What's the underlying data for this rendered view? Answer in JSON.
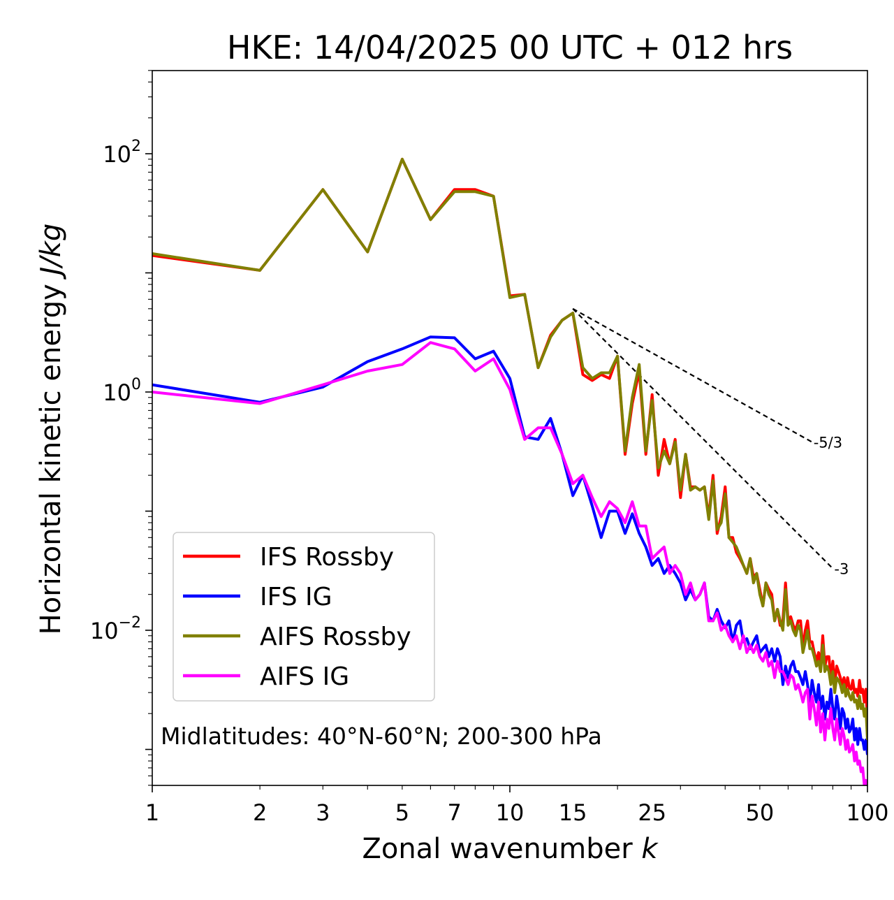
{
  "chart_data": {
    "type": "line",
    "title": "HKE: 14/04/2025 00 UTC + 012 hrs",
    "xlabel": "Zonal wavenumber",
    "xlabel_italic": "k",
    "ylabel": "Horizontal kinetic energy",
    "ylabel_italic": "J/kg",
    "xscale": "log",
    "yscale": "log",
    "xlim": [
      1,
      100
    ],
    "ylim": [
      0.0005,
      800
    ],
    "x_ticks": [
      "1",
      "2",
      "3",
      "5",
      "7",
      "10",
      "15",
      "25",
      "50",
      "100"
    ],
    "y_ticks": [
      {
        "value": 100,
        "base": "10",
        "exp": "2"
      },
      {
        "value": 1,
        "base": "10",
        "exp": "0"
      },
      {
        "value": 0.01,
        "base": "10",
        "exp": "−2"
      }
    ],
    "annotation": "Midlatitudes: 40°N-60°N; 200-300 hPa",
    "reference_lines": [
      {
        "label": "-5/3",
        "slope": -1.6667,
        "x": [
          15,
          70
        ],
        "y": [
          5.0,
          0.38
        ]
      },
      {
        "label": "-3",
        "slope": -3,
        "x": [
          15,
          80
        ],
        "y": [
          5.0,
          0.033
        ]
      }
    ],
    "legend_position": "lower left",
    "series": [
      {
        "name": "IFS Rossby",
        "color": "#ff0000",
        "x": [
          1,
          2,
          3,
          4,
          5,
          6,
          7,
          8,
          9,
          10,
          11,
          12,
          13,
          14,
          15,
          16,
          17,
          18,
          19,
          20,
          21,
          22,
          23,
          24,
          25,
          26,
          27,
          28,
          29,
          30,
          31,
          32,
          33,
          34,
          35,
          36,
          37,
          38,
          39,
          40,
          41,
          42,
          43,
          44,
          45,
          46,
          47,
          48,
          49,
          50,
          51,
          52,
          53,
          54,
          55,
          56,
          57,
          58,
          59,
          60,
          61,
          62,
          63,
          64,
          65,
          66,
          67,
          68,
          69,
          70,
          71,
          72,
          73,
          74,
          75,
          76,
          77,
          78,
          79,
          80,
          81,
          82,
          83,
          84,
          85,
          86,
          87,
          88,
          89,
          90,
          91,
          92,
          93,
          94,
          95,
          96,
          97,
          98,
          99,
          100
        ],
        "values": [
          14,
          10.5,
          50,
          15,
          90,
          28,
          50,
          50,
          44,
          6.4,
          6.6,
          1.6,
          3,
          4,
          4.6,
          1.4,
          1.25,
          1.4,
          1.3,
          2,
          0.3,
          0.8,
          1.5,
          0.3,
          0.95,
          0.2,
          0.4,
          0.25,
          0.4,
          0.13,
          0.3,
          0.16,
          0.16,
          0.15,
          0.16,
          0.09,
          0.2,
          0.065,
          0.09,
          0.16,
          0.06,
          0.06,
          0.045,
          0.04,
          0.035,
          0.03,
          0.04,
          0.028,
          0.03,
          0.022,
          0.016,
          0.025,
          0.022,
          0.02,
          0.012,
          0.015,
          0.011,
          0.012,
          0.025,
          0.012,
          0.013,
          0.011,
          0.01,
          0.012,
          0.012,
          0.007,
          0.01,
          0.012,
          0.008,
          0.008,
          0.0065,
          0.0055,
          0.0065,
          0.005,
          0.009,
          0.005,
          0.006,
          0.006,
          0.004,
          0.0055,
          0.0035,
          0.005,
          0.0045,
          0.004,
          0.0035,
          0.004,
          0.0032,
          0.004,
          0.0033,
          0.0032,
          0.0038,
          0.003,
          0.0032,
          0.0028,
          0.0038,
          0.003,
          0.0032,
          0.0025,
          0.0032,
          0.0017
        ]
      },
      {
        "name": "IFS IG",
        "color": "#0000ff",
        "x": [
          1,
          2,
          3,
          4,
          5,
          6,
          7,
          8,
          9,
          10,
          11,
          12,
          13,
          14,
          15,
          16,
          17,
          18,
          19,
          20,
          21,
          22,
          23,
          24,
          25,
          26,
          27,
          28,
          29,
          30,
          31,
          32,
          33,
          34,
          35,
          36,
          37,
          38,
          39,
          40,
          41,
          42,
          43,
          44,
          45,
          46,
          47,
          48,
          49,
          50,
          51,
          52,
          53,
          54,
          55,
          56,
          57,
          58,
          59,
          60,
          61,
          62,
          63,
          64,
          65,
          66,
          67,
          68,
          69,
          70,
          71,
          72,
          73,
          74,
          75,
          76,
          77,
          78,
          79,
          80,
          81,
          82,
          83,
          84,
          85,
          86,
          87,
          88,
          89,
          90,
          91,
          92,
          93,
          94,
          95,
          96,
          97,
          98,
          99,
          100
        ],
        "values": [
          1.15,
          0.82,
          1.1,
          1.8,
          2.3,
          2.9,
          2.85,
          1.9,
          2.2,
          1.3,
          0.42,
          0.4,
          0.6,
          0.3,
          0.135,
          0.2,
          0.11,
          0.06,
          0.1,
          0.1,
          0.065,
          0.095,
          0.065,
          0.05,
          0.035,
          0.04,
          0.03,
          0.035,
          0.03,
          0.025,
          0.018,
          0.022,
          0.018,
          0.02,
          0.025,
          0.013,
          0.012,
          0.015,
          0.012,
          0.0105,
          0.012,
          0.008,
          0.011,
          0.012,
          0.008,
          0.0085,
          0.007,
          0.008,
          0.009,
          0.0065,
          0.007,
          0.0075,
          0.006,
          0.007,
          0.0055,
          0.007,
          0.006,
          0.0035,
          0.005,
          0.004,
          0.005,
          0.0055,
          0.0045,
          0.0045,
          0.004,
          0.0035,
          0.0045,
          0.0035,
          0.0025,
          0.0038,
          0.003,
          0.0025,
          0.0035,
          0.0022,
          0.0028,
          0.0018,
          0.0025,
          0.0022,
          0.0032,
          0.0022,
          0.0018,
          0.0028,
          0.0022,
          0.0015,
          0.0022,
          0.002,
          0.0015,
          0.0018,
          0.0014,
          0.0015,
          0.0018,
          0.0012,
          0.0015,
          0.0011,
          0.0015,
          0.0012,
          0.0012,
          0.001,
          0.0012,
          0.0009
        ]
      },
      {
        "name": "AIFS Rossby",
        "color": "#808000",
        "x": [
          1,
          2,
          3,
          4,
          5,
          6,
          7,
          8,
          9,
          10,
          11,
          12,
          13,
          14,
          15,
          16,
          17,
          18,
          19,
          20,
          21,
          22,
          23,
          24,
          25,
          26,
          27,
          28,
          29,
          30,
          31,
          32,
          33,
          34,
          35,
          36,
          37,
          38,
          39,
          40,
          41,
          42,
          43,
          44,
          45,
          46,
          47,
          48,
          49,
          50,
          51,
          52,
          53,
          54,
          55,
          56,
          57,
          58,
          59,
          60,
          61,
          62,
          63,
          64,
          65,
          66,
          67,
          68,
          69,
          70,
          71,
          72,
          73,
          74,
          75,
          76,
          77,
          78,
          79,
          80,
          81,
          82,
          83,
          84,
          85,
          86,
          87,
          88,
          89,
          90,
          91,
          92,
          93,
          94,
          95,
          96,
          97,
          98,
          99,
          100
        ],
        "values": [
          14.5,
          10.5,
          50,
          15,
          90,
          28,
          48,
          48,
          44,
          6.2,
          6.6,
          1.6,
          2.9,
          4,
          4.6,
          1.6,
          1.3,
          1.45,
          1.45,
          2,
          0.32,
          0.9,
          1.7,
          0.32,
          0.85,
          0.23,
          0.32,
          0.25,
          0.38,
          0.15,
          0.3,
          0.15,
          0.16,
          0.15,
          0.16,
          0.085,
          0.18,
          0.07,
          0.08,
          0.14,
          0.06,
          0.055,
          0.05,
          0.042,
          0.035,
          0.03,
          0.04,
          0.025,
          0.03,
          0.02,
          0.016,
          0.025,
          0.02,
          0.018,
          0.012,
          0.015,
          0.012,
          0.01,
          0.022,
          0.011,
          0.012,
          0.01,
          0.009,
          0.011,
          0.01,
          0.0065,
          0.008,
          0.01,
          0.007,
          0.007,
          0.006,
          0.005,
          0.0055,
          0.0045,
          0.0075,
          0.0045,
          0.005,
          0.0045,
          0.0035,
          0.0045,
          0.003,
          0.004,
          0.0038,
          0.0035,
          0.003,
          0.0035,
          0.0028,
          0.0032,
          0.0028,
          0.0026,
          0.003,
          0.0025,
          0.0026,
          0.0022,
          0.0028,
          0.0022,
          0.0024,
          0.0019,
          0.0022,
          0.0012
        ]
      },
      {
        "name": "AIFS IG",
        "color": "#ff00ff",
        "x": [
          1,
          2,
          3,
          4,
          5,
          6,
          7,
          8,
          9,
          10,
          11,
          12,
          13,
          14,
          15,
          16,
          17,
          18,
          19,
          20,
          21,
          22,
          23,
          24,
          25,
          26,
          27,
          28,
          29,
          30,
          31,
          32,
          33,
          34,
          35,
          36,
          37,
          38,
          39,
          40,
          41,
          42,
          43,
          44,
          45,
          46,
          47,
          48,
          49,
          50,
          51,
          52,
          53,
          54,
          55,
          56,
          57,
          58,
          59,
          60,
          61,
          62,
          63,
          64,
          65,
          66,
          67,
          68,
          69,
          70,
          71,
          72,
          73,
          74,
          75,
          76,
          77,
          78,
          79,
          80,
          81,
          82,
          83,
          84,
          85,
          86,
          87,
          88,
          89,
          90,
          91,
          92,
          93,
          94,
          95,
          96,
          97,
          98,
          99,
          100
        ],
        "values": [
          1.0,
          0.8,
          1.15,
          1.5,
          1.7,
          2.6,
          2.3,
          1.5,
          1.9,
          1.05,
          0.4,
          0.5,
          0.5,
          0.3,
          0.17,
          0.2,
          0.13,
          0.09,
          0.12,
          0.105,
          0.08,
          0.12,
          0.075,
          0.075,
          0.04,
          0.045,
          0.05,
          0.03,
          0.035,
          0.03,
          0.02,
          0.025,
          0.018,
          0.02,
          0.025,
          0.012,
          0.012,
          0.014,
          0.01,
          0.011,
          0.009,
          0.008,
          0.009,
          0.007,
          0.009,
          0.0065,
          0.0075,
          0.0065,
          0.0075,
          0.006,
          0.0055,
          0.0065,
          0.005,
          0.0055,
          0.004,
          0.0055,
          0.0045,
          0.0045,
          0.004,
          0.0035,
          0.0042,
          0.004,
          0.0032,
          0.0035,
          0.003,
          0.0025,
          0.003,
          0.0032,
          0.0018,
          0.0028,
          0.0022,
          0.0016,
          0.0025,
          0.0014,
          0.002,
          0.0012,
          0.0018,
          0.0015,
          0.0022,
          0.0015,
          0.0012,
          0.0018,
          0.0014,
          0.0011,
          0.0015,
          0.0013,
          0.001,
          0.0012,
          0.00095,
          0.001,
          0.0011,
          0.0008,
          0.00095,
          0.00075,
          0.0008,
          0.00065,
          0.0007,
          0.0005,
          0.00055,
          0.0005
        ]
      }
    ]
  }
}
